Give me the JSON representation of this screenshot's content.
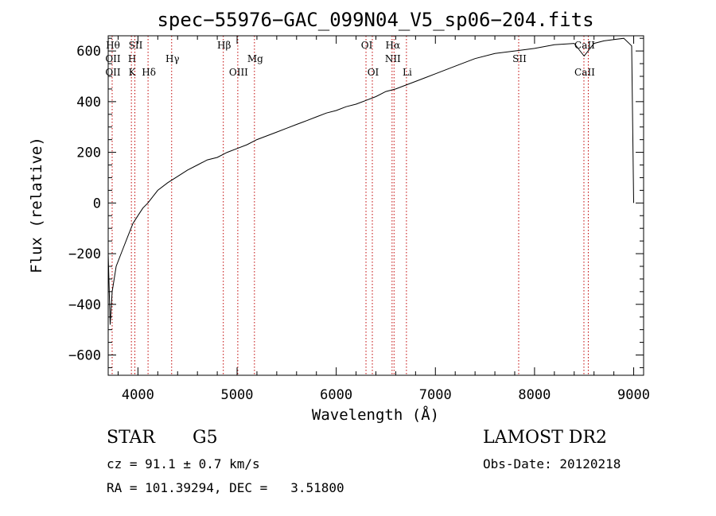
{
  "chart_data": {
    "type": "line",
    "title": "spec−55976−GAC_099N04_V5_sp06−204.fits",
    "xlabel": "Wavelength (Å)",
    "ylabel": "Flux (relative)",
    "xlim": [
      3700,
      9100
    ],
    "ylim": [
      -680,
      660
    ],
    "xticks": [
      4000,
      5000,
      6000,
      7000,
      8000,
      9000
    ],
    "yticks": [
      -600,
      -400,
      -200,
      0,
      200,
      400,
      600
    ],
    "xtick_labels": [
      "4000",
      "5000",
      "6000",
      "7000",
      "8000",
      "9000"
    ],
    "ytick_labels": [
      "−600",
      "−400",
      "−200",
      "0",
      "200",
      "400",
      "600"
    ],
    "series": [
      {
        "x": [
          3700,
          3720,
          3740,
          3760,
          3780,
          3800,
          3830,
          3860,
          3900,
          3950,
          4000,
          4050,
          4100,
          4150,
          4200,
          4300,
          4400,
          4500,
          4600,
          4700,
          4800,
          4900,
          5000,
          5100,
          5200,
          5300,
          5400,
          5500,
          5600,
          5700,
          5800,
          5900,
          6000,
          6100,
          6200,
          6300,
          6400,
          6500,
          6600,
          6700,
          6800,
          6900,
          7000,
          7200,
          7400,
          7600,
          7800,
          8000,
          8200,
          8400,
          8500,
          8600,
          8700,
          8800,
          8900,
          8980,
          9000
        ],
        "values": [
          -200,
          -480,
          -350,
          -300,
          -250,
          -230,
          -200,
          -170,
          -130,
          -80,
          -50,
          -20,
          0,
          25,
          50,
          80,
          105,
          130,
          150,
          170,
          180,
          200,
          215,
          230,
          250,
          265,
          280,
          295,
          310,
          325,
          340,
          355,
          365,
          380,
          390,
          405,
          420,
          440,
          450,
          465,
          480,
          495,
          510,
          540,
          570,
          590,
          600,
          610,
          625,
          630,
          580,
          630,
          640,
          645,
          650,
          620,
          0
        ]
      }
    ],
    "lines": [
      {
        "x": 3740,
        "top": "Hθ",
        "mid": "OII",
        "low": "OII"
      },
      {
        "x": 3934,
        "top": "",
        "mid": "H",
        "low": "K"
      },
      {
        "x": 3969,
        "top": "SII",
        "mid": "",
        "low": ""
      },
      {
        "x": 4102,
        "top": "",
        "mid": "",
        "low": "Hδ"
      },
      {
        "x": 4340,
        "top": "",
        "mid": "Hγ",
        "low": ""
      },
      {
        "x": 4861,
        "top": "Hβ",
        "mid": "",
        "low": ""
      },
      {
        "x": 5007,
        "top": "",
        "mid": "",
        "low": "OIII"
      },
      {
        "x": 5175,
        "top": "",
        "mid": "Mg",
        "low": ""
      },
      {
        "x": 6300,
        "top": "OI",
        "mid": "",
        "low": ""
      },
      {
        "x": 6364,
        "top": "",
        "mid": "",
        "low": "OI"
      },
      {
        "x": 6563,
        "top": "Hα",
        "mid": "NII",
        "low": ""
      },
      {
        "x": 6583,
        "top": "",
        "mid": "",
        "low": ""
      },
      {
        "x": 6708,
        "top": "",
        "mid": "",
        "low": "Li"
      },
      {
        "x": 7840,
        "top": "",
        "mid": "SII",
        "low": ""
      },
      {
        "x": 8498,
        "top": "CaII",
        "mid": "",
        "low": "CaII"
      },
      {
        "x": 8542,
        "top": "",
        "mid": "",
        "low": ""
      }
    ]
  },
  "info": {
    "class": "STAR",
    "subclass": "G5",
    "survey": "LAMOST DR2",
    "cz": "cz = 91.1 ± 0.7 km/s",
    "obs_date": "Obs-Date: 20120218",
    "coords": "RA = 101.39294, DEC =   3.51800"
  }
}
